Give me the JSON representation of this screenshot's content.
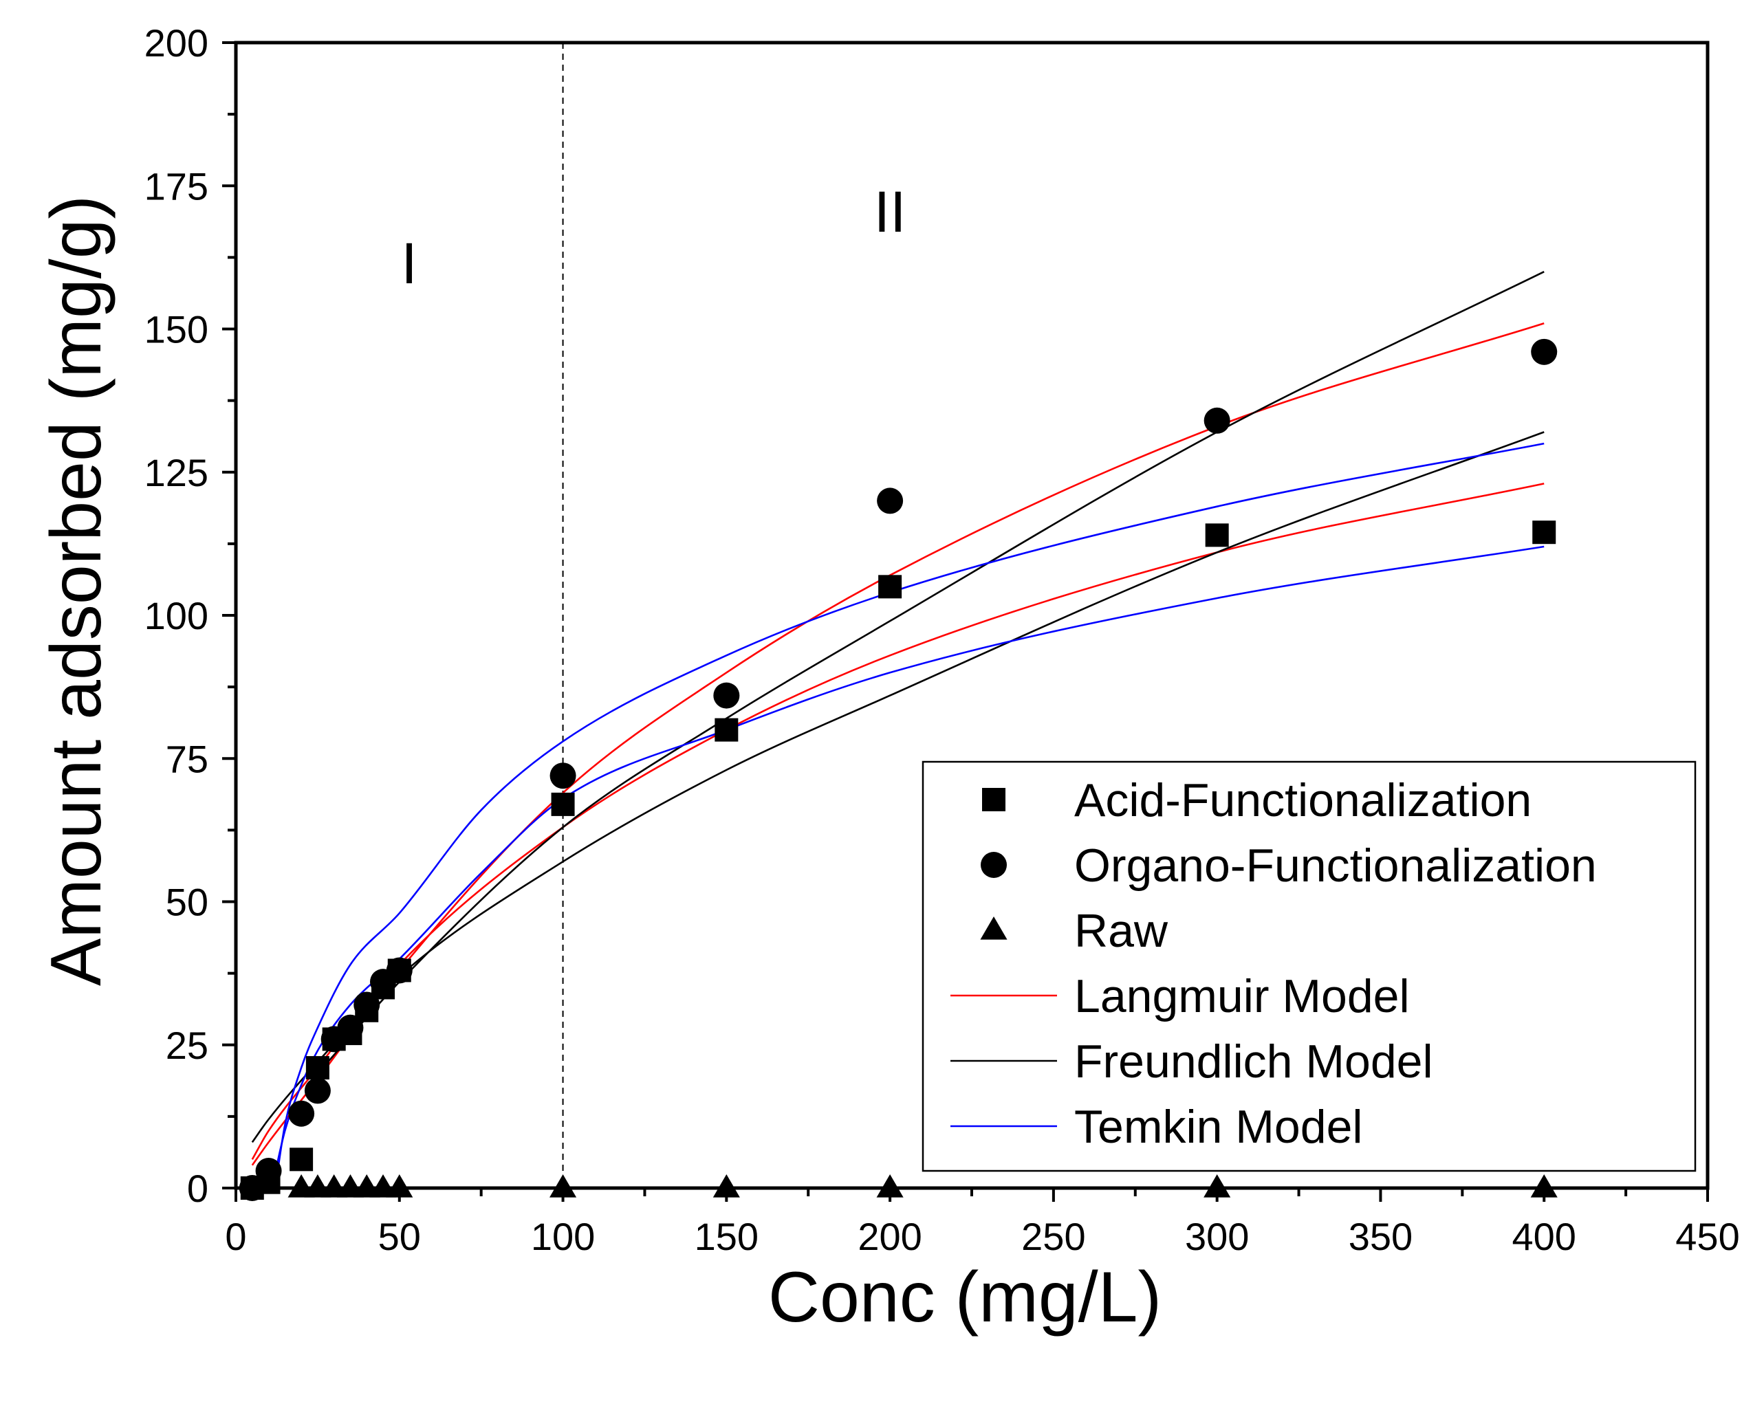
{
  "chart_data": {
    "type": "scatter",
    "title": "",
    "xlabel": "Conc (mg/L)",
    "ylabel": "Amount adsorbed (mg/g)",
    "xlim": [
      0,
      450
    ],
    "ylim": [
      0,
      200
    ],
    "xticks": [
      0,
      50,
      100,
      150,
      200,
      250,
      300,
      350,
      400,
      450
    ],
    "yticks": [
      0,
      25,
      50,
      75,
      100,
      125,
      150,
      175,
      200
    ],
    "grid": false,
    "legend_position": "lower-right",
    "divider_x": 100,
    "regions": [
      {
        "label": "I",
        "x": 53,
        "y": 158
      },
      {
        "label": "II",
        "x": 200,
        "y": 167
      }
    ],
    "series": [
      {
        "name": "Acid-Functionalization",
        "kind": "points",
        "marker": "square",
        "color": "#000000",
        "x": [
          5,
          10,
          20,
          25,
          30,
          35,
          40,
          45,
          50,
          100,
          150,
          200,
          300,
          400
        ],
        "y": [
          0,
          1,
          5,
          21,
          26,
          27,
          31,
          35,
          38,
          67,
          80,
          105,
          114,
          114.5
        ]
      },
      {
        "name": "Organo-Functionalization",
        "kind": "points",
        "marker": "circle",
        "color": "#000000",
        "x": [
          5,
          10,
          20,
          25,
          30,
          35,
          40,
          45,
          50,
          100,
          150,
          200,
          300,
          400
        ],
        "y": [
          0,
          3,
          13,
          17,
          26,
          28,
          32,
          36,
          38,
          72,
          86,
          120,
          134,
          146
        ]
      },
      {
        "name": "Raw",
        "kind": "points",
        "marker": "triangle",
        "color": "#000000",
        "x": [
          20,
          25,
          30,
          35,
          40,
          45,
          50,
          100,
          150,
          200,
          300,
          400
        ],
        "y": [
          0,
          0,
          0,
          0,
          0,
          0,
          0,
          0,
          0,
          0,
          0,
          0
        ]
      },
      {
        "name": "Langmuir Model",
        "kind": "fit",
        "color": "#ff0000",
        "curves": [
          {
            "x": [
              5,
              10,
              25,
              50,
              100,
              150,
              200,
              300,
              400
            ],
            "y": [
              5,
              10,
              21,
              39,
              63,
              80,
              93,
              111,
              123
            ]
          },
          {
            "x": [
              5,
              10,
              25,
              50,
              100,
              150,
              200,
              300,
              400
            ],
            "y": [
              4,
              8,
              19,
              38,
              69,
              90,
              107,
              133,
              151
            ]
          }
        ]
      },
      {
        "name": "Freundlich Model",
        "kind": "fit",
        "color": "#000000",
        "curves": [
          {
            "x": [
              5,
              10,
              25,
              50,
              100,
              150,
              200,
              300,
              400
            ],
            "y": [
              8,
              12,
              22,
              37,
              57,
              73,
              86,
              111,
              132
            ]
          },
          {
            "x": [
              25,
              50,
              100,
              150,
              200,
              300,
              400
            ],
            "y": [
              20,
              36,
              63,
              82,
              99,
              132,
              160
            ]
          }
        ]
      },
      {
        "name": "Temkin Model",
        "kind": "fit",
        "color": "#0000ff",
        "curves": [
          {
            "x": [
              11,
              15,
              20,
              25,
              35,
              50,
              75,
              100,
              150,
              200,
              300,
              400
            ],
            "y": [
              0,
              10,
              18,
              24,
              32,
              40,
              55,
              68,
              80,
              90,
              103,
              112
            ]
          },
          {
            "x": [
              12,
              15,
              20,
              25,
              35,
              50,
              75,
              100,
              150,
              200,
              300,
              400
            ],
            "y": [
              0,
              11,
              21,
              28,
              39,
              48,
              66,
              78,
              93,
              104,
              119,
              130
            ]
          }
        ]
      }
    ]
  }
}
